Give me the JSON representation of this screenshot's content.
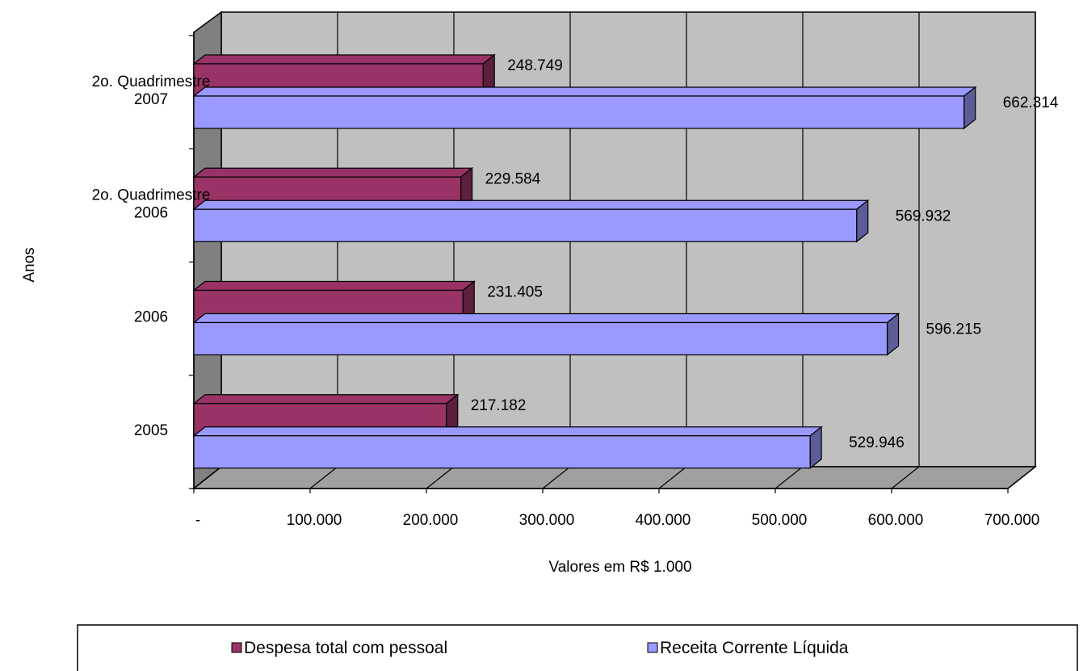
{
  "chart_data": {
    "type": "bar",
    "orientation": "horizontal",
    "three_d": true,
    "categories": [
      "2005",
      "2006",
      "2o. Quadrimestre\n2006",
      "2o. Quadrimestre\n2007"
    ],
    "series": [
      {
        "name": "Despesa total com pessoal",
        "color": "#993366",
        "values": [
          217182,
          231405,
          229584,
          248749
        ],
        "labels": [
          "217.182",
          "231.405",
          "229.584",
          "248.749"
        ]
      },
      {
        "name": "Receita Corrente Líquida",
        "color": "#9999ff",
        "values": [
          529946,
          596215,
          569932,
          662314
        ],
        "labels": [
          "529.946",
          "596.215",
          "569.932",
          "662.314"
        ]
      }
    ],
    "xlabel": "Valores em R$ 1.000",
    "ylabel": "Anos",
    "xlim": [
      0,
      700000
    ],
    "x_ticks": [
      0,
      100000,
      200000,
      300000,
      400000,
      500000,
      600000,
      700000
    ],
    "x_tick_labels": [
      "-",
      "100.000",
      "200.000",
      "300.000",
      "400.000",
      "500.000",
      "600.000",
      "700.000"
    ],
    "grid": true,
    "wall_color": "#c0c0c0",
    "legend_position": "bottom"
  }
}
